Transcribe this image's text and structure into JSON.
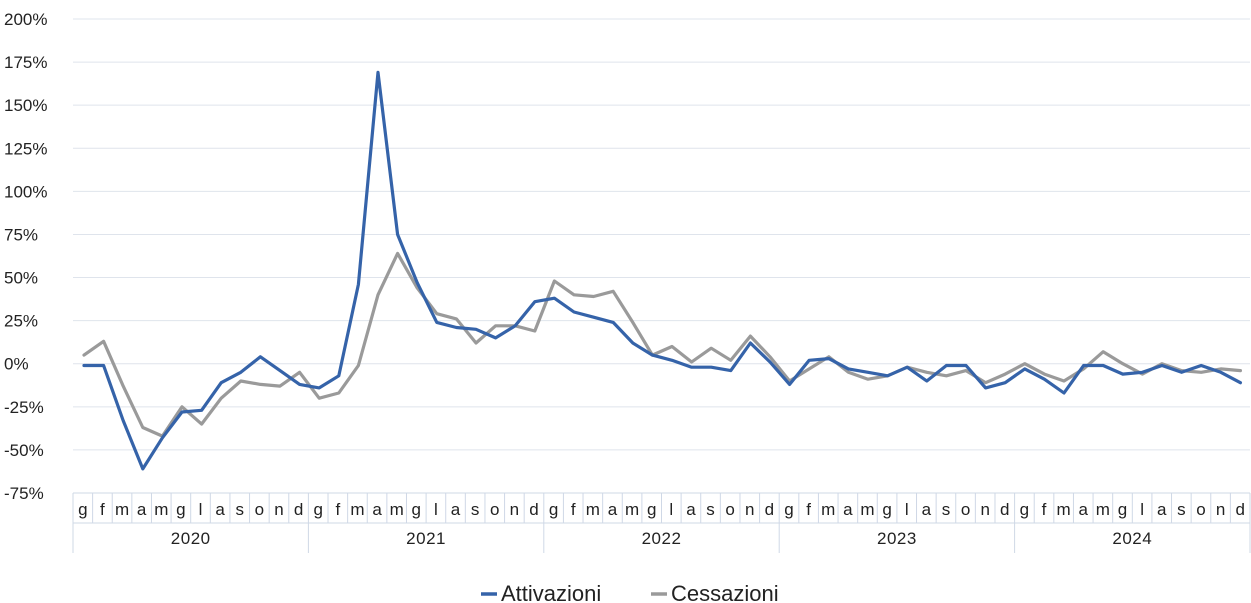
{
  "chart_data": {
    "type": "line",
    "ylim": [
      -75,
      200
    ],
    "yticks": [
      -75,
      -50,
      -25,
      0,
      25,
      50,
      75,
      100,
      125,
      150,
      175,
      200
    ],
    "ytick_labels": [
      "-75%",
      "-50%",
      "-25%",
      "0%",
      "25%",
      "50%",
      "75%",
      "100%",
      "125%",
      "150%",
      "175%",
      "200%"
    ],
    "grid": true,
    "legend_position": "bottom",
    "month_labels": [
      "g",
      "f",
      "m",
      "a",
      "m",
      "g",
      "l",
      "a",
      "s",
      "o",
      "n",
      "d"
    ],
    "years": [
      "2020",
      "2021",
      "2022",
      "2023",
      "2024"
    ],
    "series": [
      {
        "name": "Attivazioni",
        "color": "#3563a9",
        "values": [
          -1,
          -1,
          -33,
          -61,
          -43,
          -28,
          -27,
          -11,
          -5,
          4,
          -4,
          -12,
          -14,
          -7,
          46,
          169,
          75,
          47,
          24,
          21,
          20,
          15,
          22,
          36,
          38,
          30,
          27,
          24,
          12,
          5,
          2,
          -2,
          -2,
          -4,
          12,
          1,
          -12,
          2,
          3,
          -3,
          -5,
          -7,
          -2,
          -10,
          -1,
          -1,
          -14,
          -11,
          -3,
          -9,
          -17,
          -1,
          -1,
          -6,
          -5,
          -1,
          -5,
          -1,
          -5,
          -11
        ]
      },
      {
        "name": "Cessazioni",
        "color": "#9a9a9a",
        "values": [
          5,
          13,
          -13,
          -37,
          -42,
          -25,
          -35,
          -20,
          -10,
          -12,
          -13,
          -5,
          -20,
          -17,
          -1,
          40,
          64,
          44,
          29,
          26,
          12,
          22,
          22,
          19,
          48,
          40,
          39,
          42,
          24,
          5,
          10,
          1,
          9,
          2,
          16,
          4,
          -10,
          -3,
          4,
          -5,
          -9,
          -7,
          -2,
          -5,
          -7,
          -4,
          -11,
          -6,
          0,
          -6,
          -10,
          -3,
          7,
          0,
          -6,
          0,
          -4,
          -5,
          -3,
          -4
        ]
      }
    ]
  }
}
